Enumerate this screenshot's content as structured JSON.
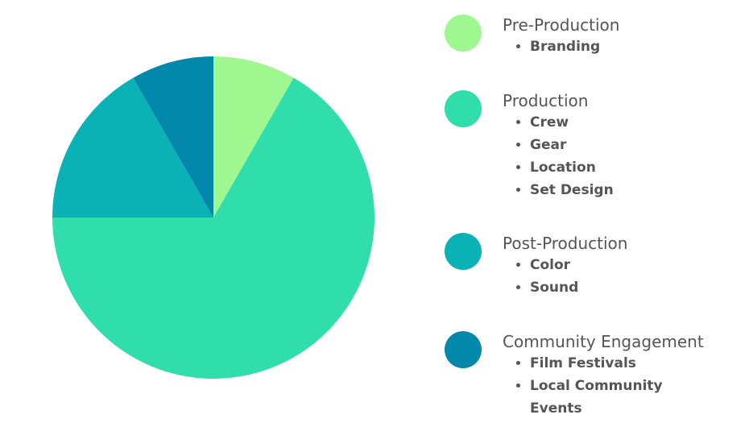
{
  "chart_data": {
    "type": "pie",
    "categories": [
      "Pre-Production",
      "Production",
      "Post-Production",
      "Community Engagement"
    ],
    "values": [
      8.3,
      66.7,
      16.7,
      8.3
    ],
    "colors": [
      "#9ef78f",
      "#2fdeab",
      "#0bb2b5",
      "#0288aa"
    ],
    "items": [
      [
        "Branding"
      ],
      [
        "Crew",
        "Gear",
        "Location",
        "Set Design"
      ],
      [
        "Color",
        "Sound"
      ],
      [
        "Film Festivals",
        "Local Community Events"
      ]
    ]
  }
}
